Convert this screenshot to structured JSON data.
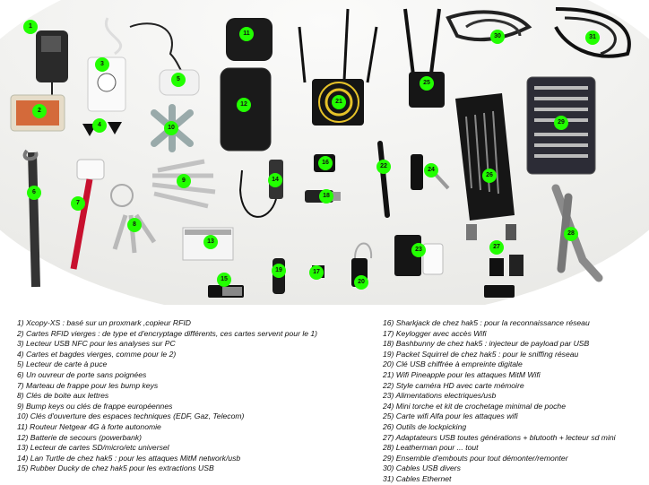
{
  "legend": [
    "1) Xcopy-XS : basé sur un proxmark ,copieur RFID",
    "2) Cartes RFID vierges : de type et d'encryptage différents, ces cartes servent pour le 1)",
    "3) Lecteur USB NFC pour les analyses sur PC",
    "4) Cartes et bagdes vierges, comme pour le 2)",
    "5) Lecteur de carte à puce",
    "6) Un ouvreur de porte sans poignées",
    "7) Marteau de frappe pour les bump keys",
    "8) Clés de boite aux lettres",
    "9) Bump keys ou clés de frappe européennes",
    "10) Clés d'ouverture des espaces techniques (EDF, Gaz, Telecom)",
    "11) Routeur Netgear 4G à forte autonomie",
    "12) Batterie de secours (powerbank)",
    "13) Lecteur de cartes SD/micro/etc universel",
    "14) Lan Turtle de chez hak5 : pour les attaques MitM network/usb",
    "15) Rubber Ducky de chez hak5 pour les extractions USB",
    "16) Sharkjack de chez hak5 : pour la reconnaissance réseau",
    "17) Keylogger avec accès Wifi",
    "18) Bashbunny de chez hak5 : injecteur de payload par USB",
    "19) Packet Squirrel de chez hak5 : pour le sniffing réseau",
    "20) Clé USB chiffrée à empreinte digitale",
    "21) Wifi Pineapple pour les attaques MitM Wifi",
    "22) Style caméra HD avec carte mémoire",
    "23) Alimentations electriques/usb",
    "24) Mini torche et kit de crochetage minimal de poche",
    "25) Carte wifi Alfa pour les attaques wifi",
    "26) Outils de lockpicking",
    "27) Adaptateurs USB toutes générations + blutooth + lecteur sd mini",
    "28) Leatherman pour ... tout",
    "29) Ensemble d'embouts pour tout démonter/remonter",
    "30) Cables USB divers",
    "31) Cables Ethernet"
  ],
  "photo_labels": [
    "1",
    "2",
    "3",
    "4",
    "5",
    "6",
    "7",
    "8",
    "9",
    "10",
    "11",
    "12",
    "13",
    "14",
    "15",
    "16",
    "17",
    "18",
    "19",
    "20",
    "21",
    "22",
    "23",
    "24",
    "25",
    "26",
    "27",
    "28",
    "29",
    "30",
    "31"
  ],
  "colors": {
    "marker": "#22ff00",
    "table": "#f4f4f2",
    "background": "#ffffff"
  }
}
